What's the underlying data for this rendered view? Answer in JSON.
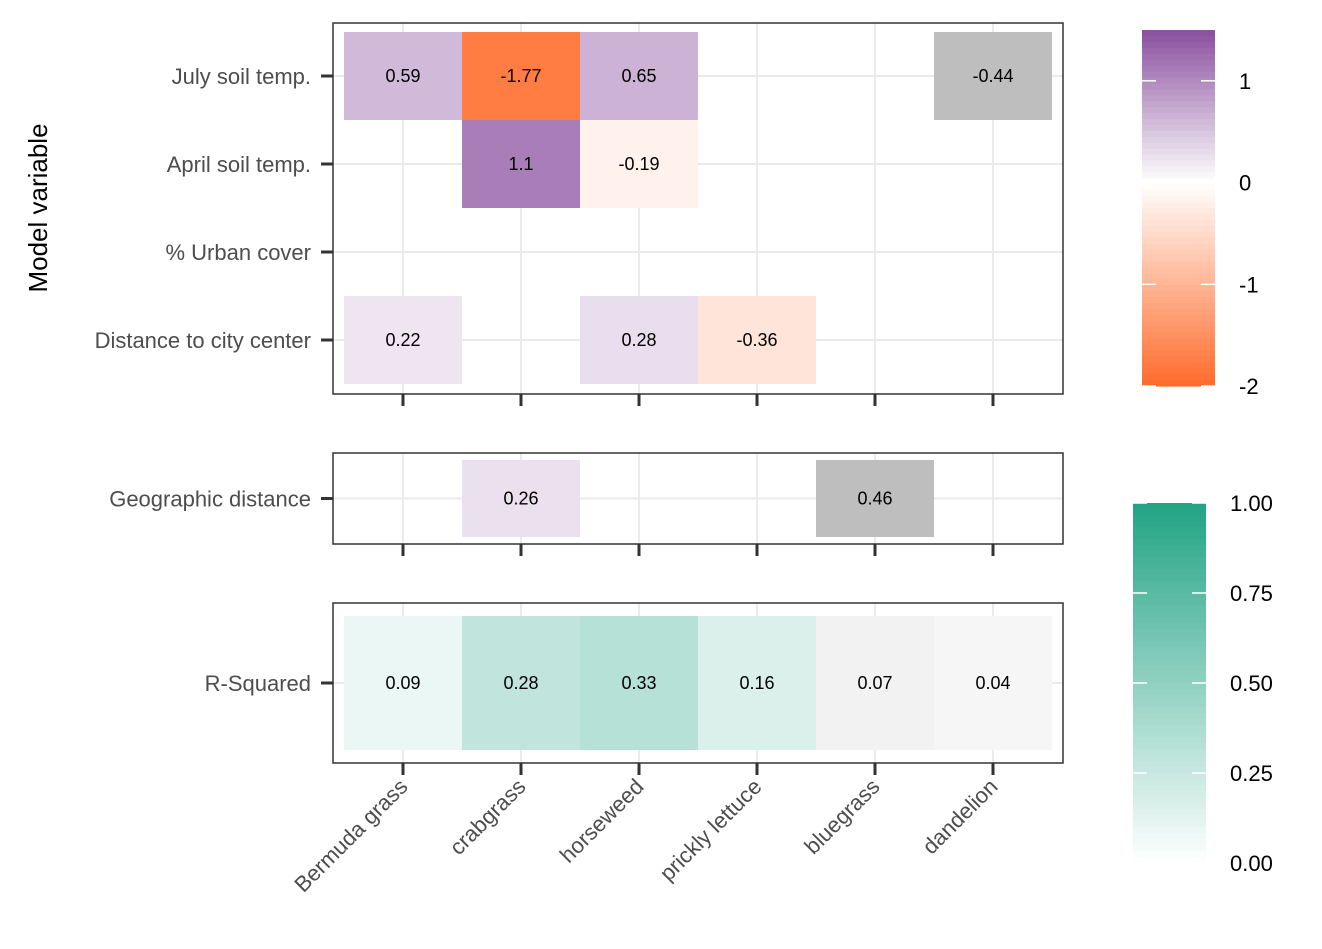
{
  "chart_data": {
    "type": "heatmap",
    "ylabel": "Model variable",
    "categories": [
      "Bermuda grass",
      "crabgrass",
      "horseweed",
      "prickly lettuce",
      "bluegrass",
      "dandelion"
    ],
    "panels": [
      {
        "name": "coefficients",
        "rows": [
          "July soil temp.",
          "April soil temp.",
          "% Urban cover",
          "Distance to city center"
        ],
        "cells": [
          {
            "row": "July soil temp.",
            "col": "Bermuda grass",
            "value": 0.59,
            "label": "0.59"
          },
          {
            "row": "July soil temp.",
            "col": "crabgrass",
            "value": -1.77,
            "label": "-1.77"
          },
          {
            "row": "July soil temp.",
            "col": "horseweed",
            "value": 0.65,
            "label": "0.65"
          },
          {
            "row": "July soil temp.",
            "col": "dandelion",
            "value": -0.44,
            "label": "-0.44",
            "nonsignificant": true
          },
          {
            "row": "April soil temp.",
            "col": "crabgrass",
            "value": 1.1,
            "label": "1.1"
          },
          {
            "row": "April soil temp.",
            "col": "horseweed",
            "value": -0.19,
            "label": "-0.19"
          },
          {
            "row": "Distance to city center",
            "col": "Bermuda grass",
            "value": 0.22,
            "label": "0.22"
          },
          {
            "row": "Distance to city center",
            "col": "horseweed",
            "value": 0.28,
            "label": "0.28"
          },
          {
            "row": "Distance to city center",
            "col": "prickly lettuce",
            "value": -0.36,
            "label": "-0.36"
          }
        ]
      },
      {
        "name": "geographic",
        "rows": [
          "Geographic distance"
        ],
        "cells": [
          {
            "row": "Geographic distance",
            "col": "crabgrass",
            "value": 0.26,
            "label": "0.26"
          },
          {
            "row": "Geographic distance",
            "col": "bluegrass",
            "value": 0.46,
            "label": "0.46",
            "nonsignificant": true
          }
        ]
      },
      {
        "name": "rsquared",
        "rows": [
          "R-Squared"
        ],
        "cells": [
          {
            "row": "R-Squared",
            "col": "Bermuda grass",
            "value": 0.09,
            "label": "0.09"
          },
          {
            "row": "R-Squared",
            "col": "crabgrass",
            "value": 0.28,
            "label": "0.28"
          },
          {
            "row": "R-Squared",
            "col": "horseweed",
            "value": 0.33,
            "label": "0.33"
          },
          {
            "row": "R-Squared",
            "col": "prickly lettuce",
            "value": 0.16,
            "label": "0.16"
          },
          {
            "row": "R-Squared",
            "col": "bluegrass",
            "value": 0.07,
            "label": "0.07",
            "nonsignificant": true
          },
          {
            "row": "R-Squared",
            "col": "dandelion",
            "value": 0.04,
            "label": "0.04",
            "nonsignificant": true
          }
        ]
      }
    ],
    "legends": [
      {
        "name": "coefficient-scale",
        "min": -2,
        "max": 1.5,
        "ticks": [
          1,
          0,
          -1,
          -2
        ],
        "tick_labels": [
          "1",
          "0",
          "-1",
          "-2"
        ],
        "low_color": "#ff6b2b",
        "mid_color": "#ffffff",
        "high_color": "#8a4f9e"
      },
      {
        "name": "rsquared-scale",
        "min": 0,
        "max": 1,
        "ticks": [
          1,
          0.75,
          0.5,
          0.25,
          0
        ],
        "tick_labels": [
          "1.00",
          "0.75",
          "0.50",
          "0.25",
          "0.00"
        ],
        "low_color": "#ffffff",
        "high_color": "#21a383"
      }
    ],
    "nonsignificant_color": "#bebebe",
    "grid": true
  }
}
